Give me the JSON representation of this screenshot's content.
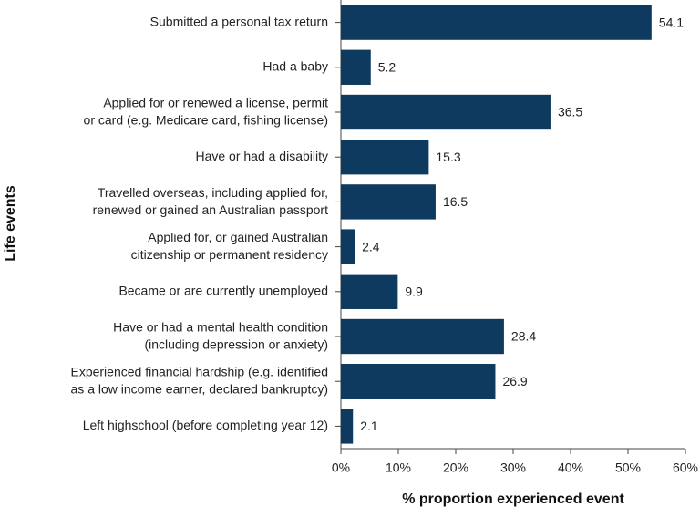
{
  "chart_data": {
    "type": "hbar",
    "x_label": "% proportion experienced event",
    "y_label": "Life events",
    "categories": [
      "Submitted a personal tax return",
      "Had a baby",
      "Applied for or renewed a license, permit\nor card (e.g. Medicare card, fishing license)",
      "Have or had a disability",
      "Travelled overseas, including applied for,\nrenewed or gained an Australian passport",
      "Applied for, or gained Australian\ncitizenship or permanent residency",
      "Became or are currently unemployed",
      "Have or had a mental health condition\n(including depression or anxiety)",
      "Experienced financial hardship (e.g. identified\nas a low income earner, declared bankruptcy)",
      "Left highschool (before completing year 12)"
    ],
    "values": [
      54.1,
      5.2,
      36.5,
      15.3,
      16.5,
      2.4,
      9.9,
      28.4,
      26.9,
      2.1
    ],
    "color": "#0f3a5f",
    "xlim": [
      0,
      60
    ],
    "xticks": [
      {
        "value": 0,
        "label": "0%"
      },
      {
        "value": 10,
        "label": "10%"
      },
      {
        "value": 20,
        "label": "20%"
      },
      {
        "value": 30,
        "label": "30%"
      },
      {
        "value": 40,
        "label": "40%"
      },
      {
        "value": 50,
        "label": "50%"
      },
      {
        "value": 60,
        "label": "60%"
      }
    ],
    "grid": false
  }
}
